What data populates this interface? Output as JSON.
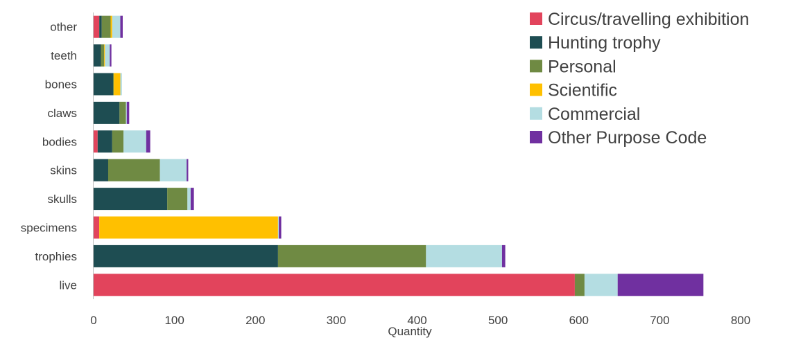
{
  "chart_data": {
    "type": "bar",
    "orientation": "horizontal",
    "stacked": true,
    "title": "",
    "xlabel": "Quantity",
    "ylabel": "",
    "xlim": [
      0,
      800
    ],
    "xticks": [
      0,
      100,
      200,
      300,
      400,
      500,
      600,
      700,
      800
    ],
    "grid": false,
    "legend_position": "top-right",
    "categories": [
      "other",
      "teeth",
      "bones",
      "claws",
      "bodies",
      "skins",
      "skulls",
      "specimens",
      "trophies",
      "live"
    ],
    "series": [
      {
        "name": "Circus/travelling exhibition",
        "color": "#E2445C",
        "values": [
          7,
          0,
          0,
          0,
          5,
          0,
          0,
          7,
          0,
          595
        ]
      },
      {
        "name": "Hunting trophy",
        "color": "#1E4D52",
        "values": [
          3,
          9,
          24,
          32,
          18,
          18,
          91,
          0,
          228,
          0
        ]
      },
      {
        "name": "Personal",
        "color": "#6F8A43",
        "values": [
          11,
          4,
          1,
          8,
          14,
          64,
          25,
          0,
          183,
          12
        ]
      },
      {
        "name": "Scientific",
        "color": "#FFC000",
        "values": [
          2,
          1,
          8,
          0,
          0,
          0,
          0,
          221,
          0,
          0
        ]
      },
      {
        "name": "Commercial",
        "color": "#B4DDE2",
        "values": [
          10,
          6,
          2,
          1,
          28,
          33,
          4,
          1,
          94,
          41
        ]
      },
      {
        "name": "Other Purpose Code",
        "color": "#7030A0",
        "values": [
          3,
          2,
          0,
          3,
          5,
          2,
          4,
          3,
          4,
          106
        ]
      }
    ]
  }
}
